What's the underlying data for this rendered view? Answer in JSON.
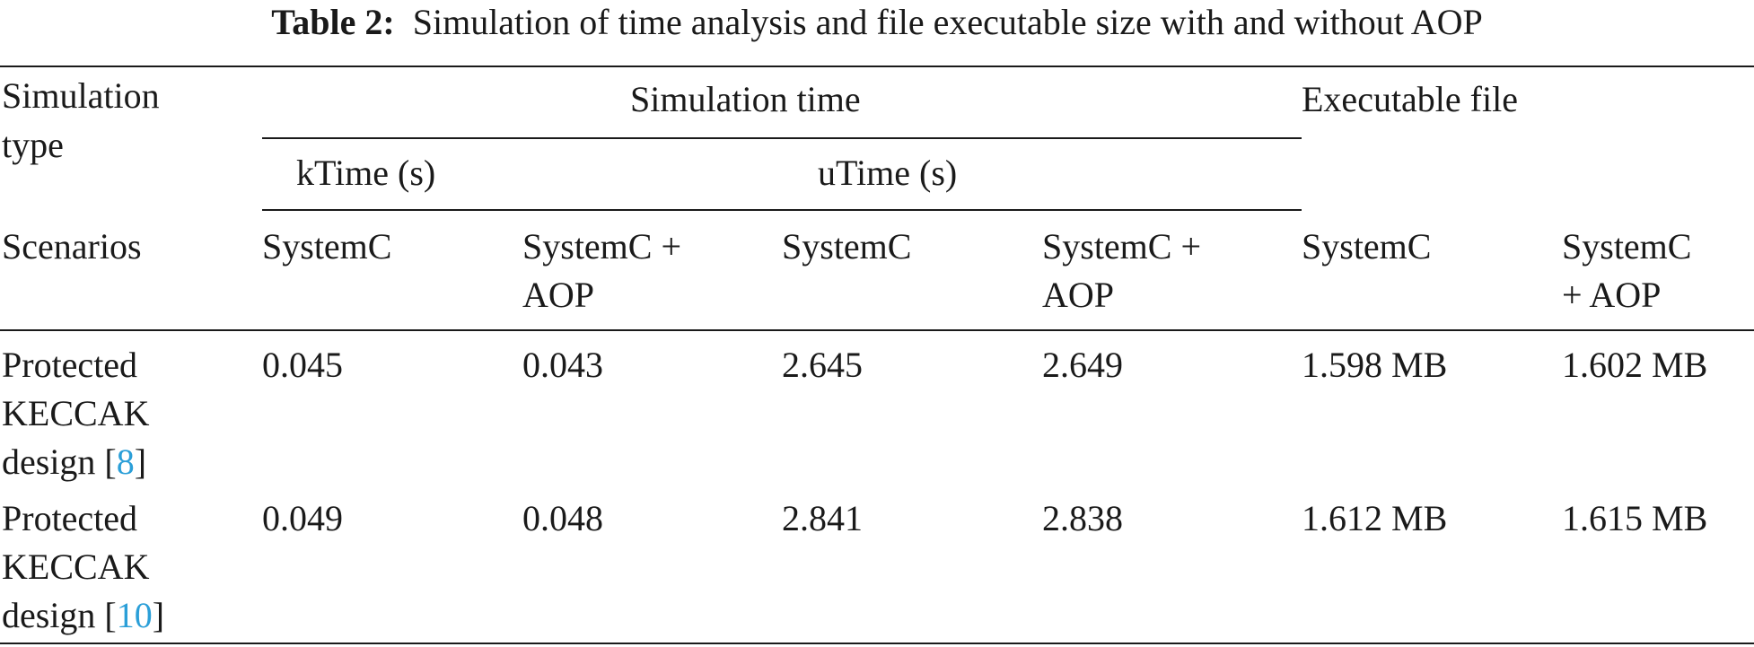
{
  "caption": {
    "label": "Table 2:",
    "text": "Simulation of time analysis and file executable size with and without AOP"
  },
  "header": {
    "simulation_type": [
      "Simulation",
      "type"
    ],
    "simulation_time": "Simulation time",
    "executable_file": "Executable file",
    "ktime": "kTime (s)",
    "utime": "uTime (s)",
    "scenarios": "Scenarios",
    "cols": [
      [
        "SystemC"
      ],
      [
        "SystemC +",
        "AOP"
      ],
      [
        "SystemC"
      ],
      [
        "SystemC +",
        "AOP"
      ],
      [
        "SystemC"
      ],
      [
        "SystemC",
        "+ AOP"
      ]
    ]
  },
  "rows": [
    {
      "name": [
        "Protected",
        "KECCAK",
        "design ["
      ],
      "ref": "8",
      "ref_close": "]",
      "values": [
        "0.045",
        "0.043",
        "2.645",
        "2.649",
        "1.598 MB",
        "1.602 MB"
      ]
    },
    {
      "name": [
        "Protected",
        "KECCAK",
        "design ["
      ],
      "ref": "10",
      "ref_close": "]",
      "values": [
        "0.049",
        "0.048",
        "2.841",
        "2.838",
        "1.612 MB",
        "1.615 MB"
      ]
    }
  ],
  "colors": {
    "text": "#1a1a1a",
    "reference_link": "#2b9fd8"
  }
}
